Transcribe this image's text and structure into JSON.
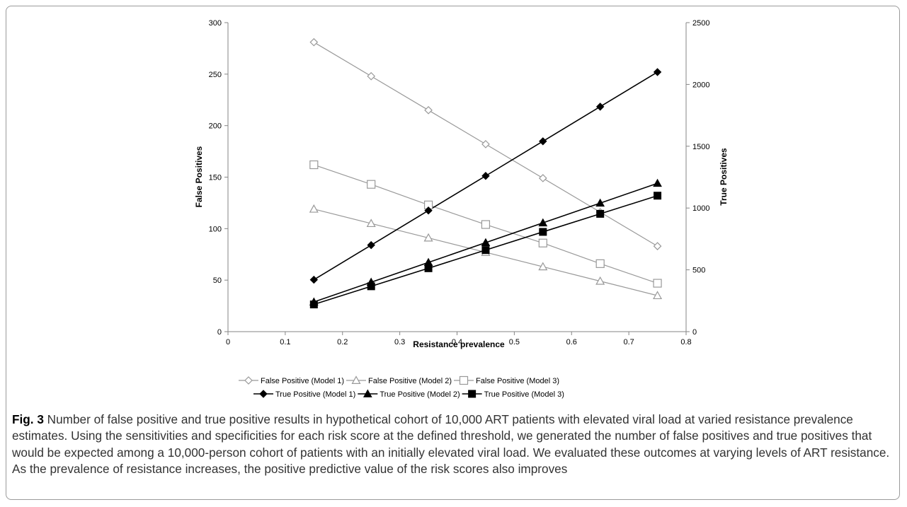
{
  "figure": {
    "label": "Fig. 3",
    "caption": "Number of false positive and true positive results in hypothetical cohort of 10,000 ART patients with elevated viral load at varied resistance prevalence estimates. Using the sensitivities and specificities for each risk score at the defined threshold, we generated the number of false positives and true positives that would be expected among a 10,000-person cohort of patients with an initially elevated viral load. We evaluated these outcomes at varying levels of ART resistance. As the prevalence of resistance increases, the positive predictive value of the risk scores also improves"
  },
  "chart_data": {
    "type": "line",
    "title": "",
    "xlabel": "Resistance prevalence",
    "ylabel_left": "False Positives",
    "ylabel_right": "True Positives",
    "xlim": [
      0,
      0.8
    ],
    "ylim_left": [
      0,
      300
    ],
    "ylim_right": [
      0,
      2500
    ],
    "x_ticks": [
      "0",
      "0.1",
      "0.2",
      "0.3",
      "0.4",
      "0.5",
      "0.6",
      "0.7",
      "0.8"
    ],
    "y_left_ticks": [
      "0",
      "50",
      "100",
      "150",
      "200",
      "250",
      "300"
    ],
    "y_right_ticks": [
      "0",
      "500",
      "1000",
      "1500",
      "2000",
      "2500"
    ],
    "grid": false,
    "legend_position": "bottom",
    "x": [
      0.15,
      0.25,
      0.35,
      0.45,
      0.55,
      0.65,
      0.75
    ],
    "series": [
      {
        "name": "False Positive (Model 1)",
        "axis": "left",
        "marker": "diamond",
        "filled": false,
        "color": "#999999",
        "values": [
          281,
          248,
          215,
          182,
          149,
          116,
          83
        ]
      },
      {
        "name": "False Positive (Model 2)",
        "axis": "left",
        "marker": "triangle",
        "filled": false,
        "color": "#999999",
        "values": [
          119,
          105,
          91,
          77,
          63,
          49,
          35
        ]
      },
      {
        "name": "False Positive (Model 3)",
        "axis": "left",
        "marker": "square",
        "filled": false,
        "color": "#999999",
        "values": [
          162,
          143,
          123,
          104,
          86,
          66,
          47
        ]
      },
      {
        "name": "True Positive (Model 1)",
        "axis": "right",
        "marker": "diamond",
        "filled": true,
        "color": "#000000",
        "values": [
          420,
          700,
          980,
          1260,
          1540,
          1820,
          2100
        ]
      },
      {
        "name": "True Positive (Model 2)",
        "axis": "right",
        "marker": "triangle",
        "filled": true,
        "color": "#000000",
        "values": [
          240,
          400,
          560,
          720,
          880,
          1040,
          1200
        ]
      },
      {
        "name": "True Positive (Model 3)",
        "axis": "right",
        "marker": "square",
        "filled": true,
        "color": "#000000",
        "values": [
          220,
          367,
          513,
          660,
          807,
          953,
          1100
        ]
      }
    ]
  }
}
